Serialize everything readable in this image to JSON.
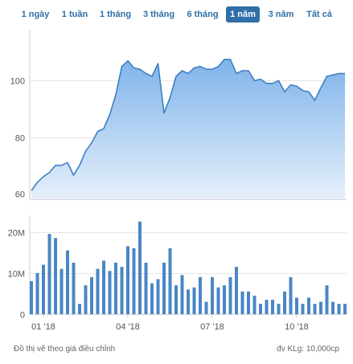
{
  "range_tabs": [
    {
      "label": "1 ngày"
    },
    {
      "label": "1 tuần"
    },
    {
      "label": "1 tháng"
    },
    {
      "label": "3 tháng"
    },
    {
      "label": "6 tháng"
    },
    {
      "label": "1 năm"
    },
    {
      "label": "3 năm"
    },
    {
      "label": "Tất cả"
    }
  ],
  "active_tab_index": 5,
  "footer": {
    "note": "Đồ thị vẽ theo giá điều chỉnh",
    "unit": "đv KLg: 10,000cp"
  },
  "colors": {
    "accent": "#2f6fa8",
    "line": "#3f7fc3",
    "area_top": "#7fb3ea",
    "area_bottom": "#e6f0fb",
    "bar": "#4a86c5"
  },
  "chart_data": [
    {
      "type": "area",
      "ylim": [
        58,
        118
      ],
      "y_ticks": [
        60,
        80,
        100
      ],
      "y_tick_labels": [
        "60",
        "80",
        "100"
      ],
      "values": [
        61,
        64,
        66,
        67.5,
        70,
        70,
        71,
        66.5,
        70,
        75,
        78,
        82,
        83,
        88,
        95,
        105,
        107,
        104.5,
        104,
        102.5,
        101.5,
        106,
        88.5,
        94,
        101.5,
        103.5,
        102.5,
        104.5,
        105,
        104,
        104,
        105,
        107.5,
        107.5,
        102.5,
        103.5,
        103.5,
        100,
        100.5,
        99,
        99,
        100,
        96,
        98.5,
        98,
        96.5,
        96,
        93,
        97.5,
        101.5,
        102,
        102.5,
        102.5
      ]
    },
    {
      "type": "bar",
      "ylim": [
        0,
        24
      ],
      "y_ticks": [
        0,
        10,
        20
      ],
      "y_tick_labels": [
        "0",
        "10M",
        "20M"
      ],
      "values": [
        8,
        10,
        12,
        19.5,
        18.5,
        11,
        15.5,
        12.5,
        2.5,
        7,
        9,
        11,
        13,
        10.5,
        12.5,
        11.5,
        16.5,
        16,
        22.5,
        12.5,
        7.5,
        8.5,
        12.5,
        16,
        7,
        9.5,
        6,
        6.5,
        9,
        3,
        9,
        6.5,
        7,
        9,
        11.5,
        5.5,
        5.5,
        4.5,
        2.5,
        3.5,
        3.5,
        2.5,
        5.5,
        9,
        4,
        2.5,
        4,
        2.5,
        3,
        7,
        3,
        2.5,
        2.5
      ],
      "x_tick_labels": [
        "01 '18",
        "04 '18",
        "07 '18",
        "10 '18"
      ],
      "x_tick_index": [
        2,
        16,
        30,
        44
      ]
    }
  ]
}
